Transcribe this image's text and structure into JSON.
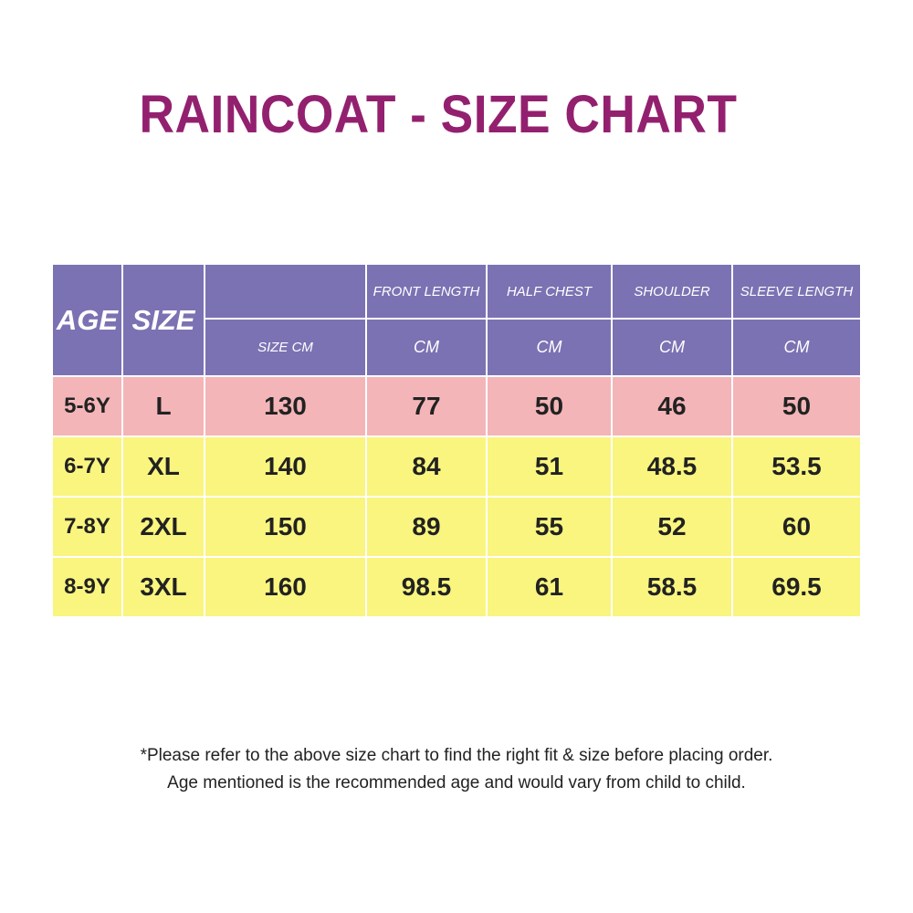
{
  "title": "RAINCOAT - SIZE CHART",
  "table": {
    "header_top": [
      "AGE",
      "SIZE",
      "",
      "FRONT LENGTH",
      "HALF CHEST",
      "SHOULDER",
      "SLEEVE LENGTH"
    ],
    "header_units": [
      "SIZE CM",
      "CM",
      "CM",
      "CM",
      "CM"
    ],
    "rows": [
      {
        "age": "5-6Y",
        "size": "L",
        "size_cm": "130",
        "front_length": "77",
        "half_chest": "50",
        "shoulder": "46",
        "sleeve_length": "50"
      },
      {
        "age": "6-7Y",
        "size": "XL",
        "size_cm": "140",
        "front_length": "84",
        "half_chest": "51",
        "shoulder": "48.5",
        "sleeve_length": "53.5"
      },
      {
        "age": "7-8Y",
        "size": "2XL",
        "size_cm": "150",
        "front_length": "89",
        "half_chest": "55",
        "shoulder": "52",
        "sleeve_length": "60"
      },
      {
        "age": "8-9Y",
        "size": "3XL",
        "size_cm": "160",
        "front_length": "98.5",
        "half_chest": "61",
        "shoulder": "58.5",
        "sleeve_length": "69.5"
      }
    ]
  },
  "notes": {
    "line1": "*Please refer to the above size chart to find the right fit & size before placing order.",
    "line2": "Age mentioned is the recommended age and would vary from child to child."
  },
  "colors": {
    "title": "#93206f",
    "header": "#7b72b3",
    "row_first": "#f4b5b8",
    "row_other": "#f9f57f"
  }
}
